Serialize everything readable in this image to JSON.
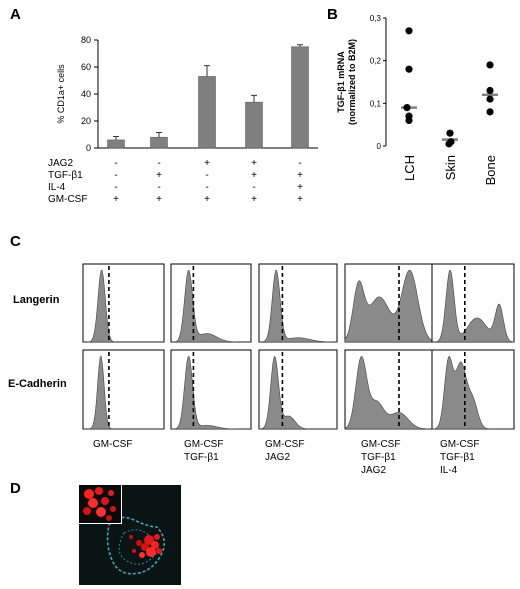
{
  "panels": {
    "a": "A",
    "b": "B",
    "c": "C",
    "d": "D"
  },
  "chart_data": [
    {
      "type": "bar",
      "panel": "A",
      "ylabel": "% CD1a+ cells",
      "ylim": [
        0,
        80
      ],
      "yticks": [
        0,
        20,
        40,
        60,
        80
      ],
      "values": [
        6,
        8,
        53,
        34,
        75
      ],
      "errors": [
        2.5,
        3.5,
        8,
        5,
        1.5
      ],
      "color": "#7f7f7f",
      "condition_rows": [
        {
          "label": "JAG2",
          "signs": [
            "-",
            "-",
            "+",
            "+",
            "-"
          ]
        },
        {
          "label": "TGF-β1",
          "signs": [
            "-",
            "+",
            "-",
            "+",
            "+"
          ]
        },
        {
          "label": "IL-4",
          "signs": [
            "-",
            "-",
            "-",
            "-",
            "+"
          ]
        },
        {
          "label": "GM-CSF",
          "signs": [
            "+",
            "+",
            "+",
            "+",
            "+"
          ]
        }
      ]
    },
    {
      "type": "scatter",
      "panel": "B",
      "ylabel_line1": "TGF-β1 mRNA",
      "ylabel_line2": "(normalized to B2M)",
      "ylim": [
        0,
        0.3
      ],
      "yticks": [
        "0",
        "0,1",
        "0,2",
        "0,3"
      ],
      "ytick_values": [
        0,
        0.1,
        0.2,
        0.3
      ],
      "categories": [
        "LCH",
        "Skin",
        "Bone"
      ],
      "points": [
        [
          0.27,
          0.18,
          0.09,
          0.07,
          0.06
        ],
        [
          0.03,
          0.01,
          0.005
        ],
        [
          0.19,
          0.13,
          0.11,
          0.08
        ]
      ],
      "medians": [
        0.09,
        0.015,
        0.12
      ],
      "point_color": "#000000",
      "median_color": "#808080"
    },
    {
      "type": "histogram",
      "panel": "C",
      "rows": [
        "Langerin",
        "E-Cadherin"
      ],
      "conditions": [
        {
          "line1": "GM-CSF",
          "line2": "",
          "line3": ""
        },
        {
          "line1": "GM-CSF",
          "line2": "TGF-β1",
          "line3": ""
        },
        {
          "line1": "GM-CSF",
          "line2": "JAG2",
          "line3": ""
        },
        {
          "line1": "GM-CSF",
          "line2": "TGF-β1",
          "line3": "JAG2"
        },
        {
          "line1": "GM-CSF",
          "line2": "TGF-β1",
          "line3": "IL-4"
        }
      ],
      "fill_color": "#8a8a8a"
    }
  ]
}
